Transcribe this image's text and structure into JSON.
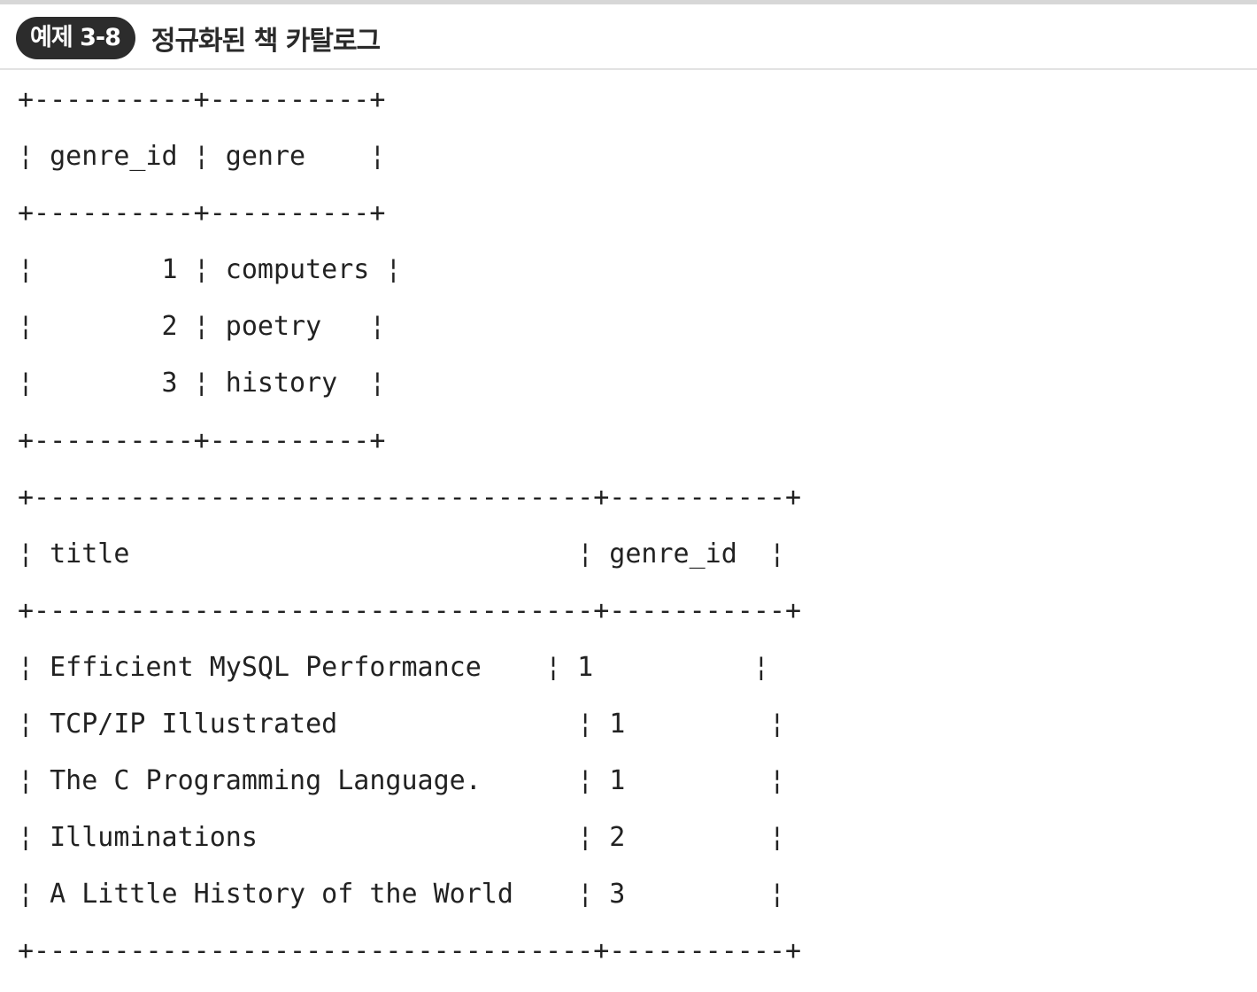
{
  "header": {
    "badge": "예제 3-8",
    "title": "정규화된 책 카탈로그"
  },
  "genre_table": {
    "border": "+----------+----------+",
    "columns": [
      "genre_id",
      "genre"
    ],
    "rows": [
      {
        "genre_id": "1",
        "genre": "computers"
      },
      {
        "genre_id": "2",
        "genre": "poetry"
      },
      {
        "genre_id": "3",
        "genre": "history"
      }
    ],
    "lines": {
      "top": "+----------+----------+",
      "header": "¦ genre_id ¦ genre    ¦",
      "separator": "+----------+----------+",
      "row_1": "¦        1 ¦ computers ¦",
      "row_2": "¦        2 ¦ poetry   ¦",
      "row_3": "¦        3 ¦ history  ¦",
      "bottom": "+----------+----------+"
    }
  },
  "book_table": {
    "border": "+-----------------------------------+-----------+",
    "columns": [
      "title",
      "genre_id"
    ],
    "rows": [
      {
        "title": "Efficient MySQL Performance",
        "genre_id": "1"
      },
      {
        "title": "TCP/IP Illustrated",
        "genre_id": "1"
      },
      {
        "title": "The C Programming Language.",
        "genre_id": "1"
      },
      {
        "title": "Illuminations",
        "genre_id": "2"
      },
      {
        "title": "A Little History of the World",
        "genre_id": "3"
      }
    ],
    "lines": {
      "top": "+-----------------------------------+-----------+",
      "header": "¦ title                            ¦ genre_id  ¦",
      "separator": "+-----------------------------------+-----------+",
      "row_1": "¦ Efficient MySQL Performance    ¦ 1          ¦",
      "row_2": "¦ TCP/IP Illustrated               ¦ 1         ¦",
      "row_3": "¦ The C Programming Language.      ¦ 1         ¦",
      "row_4": "¦ Illuminations                    ¦ 2         ¦",
      "row_5": "¦ A Little History of the World    ¦ 3         ¦",
      "bottom": "+-----------------------------------+-----------+"
    }
  }
}
